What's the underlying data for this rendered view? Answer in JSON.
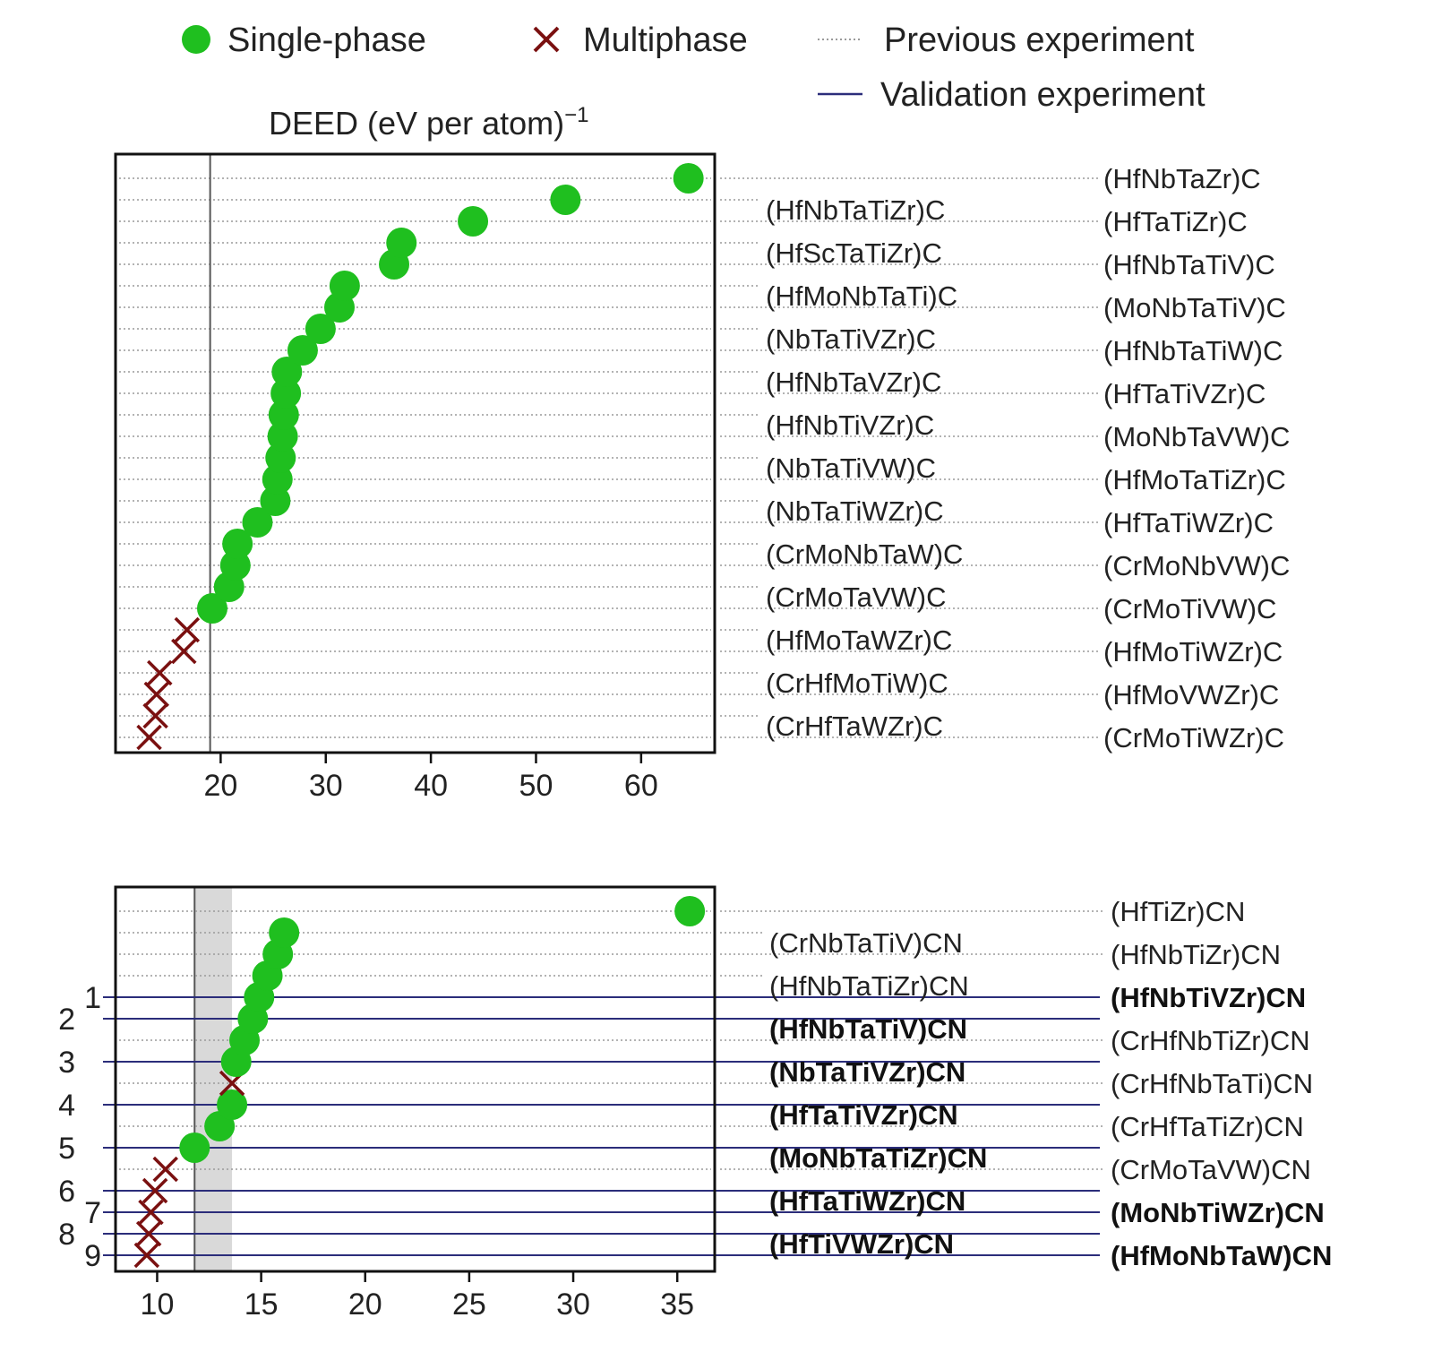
{
  "legend": {
    "single_phase": "Single-phase",
    "multiphase": "Multiphase",
    "previous": "Previous experiment",
    "validation": "Validation experiment"
  },
  "colors": {
    "single_phase": "#1fbf1f",
    "multiphase": "#7a1010",
    "validation_line": "#2b2d7a",
    "dotted_line": "#9a9a9a",
    "threshold_band": "#d9d9d9"
  },
  "chart_data": [
    {
      "type": "scatter",
      "title": "DEED (eV per atom)",
      "title_superscript": "−1",
      "xlim": [
        10,
        67
      ],
      "xticks": [
        20,
        30,
        40,
        50,
        60
      ],
      "threshold_line_x": 19,
      "grid": "dotted horizontal per composition",
      "points": [
        {
          "label": "(HfNbTaZr)C",
          "value": 64.5,
          "phase": "single",
          "side": "right"
        },
        {
          "label": "(HfNbTaTiZr)C",
          "value": 52.8,
          "phase": "single",
          "side": "left"
        },
        {
          "label": "(HfTaTiZr)C",
          "value": 44.0,
          "phase": "single",
          "side": "right"
        },
        {
          "label": "(HfScTaTiZr)C",
          "value": 37.2,
          "phase": "single",
          "side": "left"
        },
        {
          "label": "(HfNbTaTiV)C",
          "value": 36.5,
          "phase": "single",
          "side": "right"
        },
        {
          "label": "(HfMoNbTaTi)C",
          "value": 31.8,
          "phase": "single",
          "side": "left"
        },
        {
          "label": "(MoNbTaTiV)C",
          "value": 31.3,
          "phase": "single",
          "side": "right"
        },
        {
          "label": "(NbTaTiVZr)C",
          "value": 29.5,
          "phase": "single",
          "side": "left"
        },
        {
          "label": "(HfNbTaTiW)C",
          "value": 27.8,
          "phase": "single",
          "side": "right"
        },
        {
          "label": "(HfNbTaVZr)C",
          "value": 26.3,
          "phase": "single",
          "side": "left"
        },
        {
          "label": "(HfTaTiVZr)C",
          "value": 26.2,
          "phase": "single",
          "side": "right"
        },
        {
          "label": "(HfNbTiVZr)C",
          "value": 26.0,
          "phase": "single",
          "side": "left"
        },
        {
          "label": "(MoNbTaVW)C",
          "value": 25.9,
          "phase": "single",
          "side": "right"
        },
        {
          "label": "(NbTaTiVW)C",
          "value": 25.7,
          "phase": "single",
          "side": "left"
        },
        {
          "label": "(HfMoTaTiZr)C",
          "value": 25.4,
          "phase": "single",
          "side": "right"
        },
        {
          "label": "(NbTaTiWZr)C",
          "value": 25.2,
          "phase": "single",
          "side": "left"
        },
        {
          "label": "(HfTaTiWZr)C",
          "value": 23.5,
          "phase": "single",
          "side": "right"
        },
        {
          "label": "(CrMoNbTaW)C",
          "value": 21.6,
          "phase": "single",
          "side": "left"
        },
        {
          "label": "(CrMoNbVW)C",
          "value": 21.4,
          "phase": "single",
          "side": "right"
        },
        {
          "label": "(CrMoTaVW)C",
          "value": 20.8,
          "phase": "single",
          "side": "left"
        },
        {
          "label": "(CrMoTiVW)C",
          "value": 19.2,
          "phase": "single",
          "side": "right"
        },
        {
          "label": "(HfMoTaWZr)C",
          "value": 16.8,
          "phase": "multi",
          "side": "left"
        },
        {
          "label": "(HfMoTiWZr)C",
          "value": 16.5,
          "phase": "multi",
          "side": "right"
        },
        {
          "label": "(CrHfMoTiW)C",
          "value": 14.2,
          "phase": "multi",
          "side": "left"
        },
        {
          "label": "(HfMoVWZr)C",
          "value": 13.9,
          "phase": "multi",
          "side": "right"
        },
        {
          "label": "(CrHfTaWZr)C",
          "value": 13.8,
          "phase": "multi",
          "side": "left"
        },
        {
          "label": "(CrMoTiWZr)C",
          "value": 13.2,
          "phase": "multi",
          "side": "right"
        }
      ]
    },
    {
      "type": "scatter",
      "xlim": [
        8.0,
        36.8
      ],
      "xticks": [
        10,
        15,
        20,
        25,
        30,
        35
      ],
      "threshold_line_x": 11.8,
      "threshold_band": [
        11.8,
        13.6
      ],
      "grid": "dotted horizontal per composition; solid lines for validation experiments",
      "points": [
        {
          "label": "(HfTiZr)CN",
          "value": 35.6,
          "phase": "single",
          "side": "right",
          "validation": false,
          "number": ""
        },
        {
          "label": "(CrNbTaTiV)CN",
          "value": 16.1,
          "phase": "single",
          "side": "left",
          "validation": false,
          "number": ""
        },
        {
          "label": "(HfNbTiZr)CN",
          "value": 15.8,
          "phase": "single",
          "side": "right",
          "validation": false,
          "number": ""
        },
        {
          "label": "(HfNbTaTiZr)CN",
          "value": 15.3,
          "phase": "single",
          "side": "left",
          "validation": false,
          "number": ""
        },
        {
          "label": "(HfNbTiVZr)CN",
          "value": 14.9,
          "phase": "single",
          "side": "right",
          "validation": true,
          "number": "1"
        },
        {
          "label": "(HfNbTaTiV)CN",
          "value": 14.6,
          "phase": "single",
          "side": "left",
          "validation": true,
          "number": "2"
        },
        {
          "label": "(CrHfNbTiZr)CN",
          "value": 14.2,
          "phase": "single",
          "side": "right",
          "validation": false,
          "number": ""
        },
        {
          "label": "(NbTaTiVZr)CN",
          "value": 13.8,
          "phase": "single",
          "side": "left",
          "validation": true,
          "number": "3"
        },
        {
          "label": "(CrHfNbTaTi)CN",
          "value": 13.6,
          "phase": "multi",
          "side": "right",
          "validation": false,
          "number": ""
        },
        {
          "label": "(HfTaTiVZr)CN",
          "value": 13.6,
          "phase": "single",
          "side": "left",
          "validation": true,
          "number": "4"
        },
        {
          "label": "(CrHfTaTiZr)CN",
          "value": 13.0,
          "phase": "single",
          "side": "right",
          "validation": false,
          "number": ""
        },
        {
          "label": "(MoNbTaTiZr)CN",
          "value": 11.8,
          "phase": "single",
          "side": "left",
          "validation": true,
          "number": "5"
        },
        {
          "label": "(CrMoTaVW)CN",
          "value": 10.4,
          "phase": "multi",
          "side": "right",
          "validation": false,
          "number": ""
        },
        {
          "label": "(HfTaTiWZr)CN",
          "value": 9.9,
          "phase": "multi",
          "side": "left",
          "validation": true,
          "number": "6"
        },
        {
          "label": "(MoNbTiWZr)CN",
          "value": 9.7,
          "phase": "multi",
          "side": "right",
          "validation": true,
          "number": "7"
        },
        {
          "label": "(HfTiVWZr)CN",
          "value": 9.6,
          "phase": "multi",
          "side": "left",
          "validation": true,
          "number": "8"
        },
        {
          "label": "(HfMoNbTaW)CN",
          "value": 9.5,
          "phase": "multi",
          "side": "right",
          "validation": true,
          "number": "9"
        }
      ]
    }
  ]
}
